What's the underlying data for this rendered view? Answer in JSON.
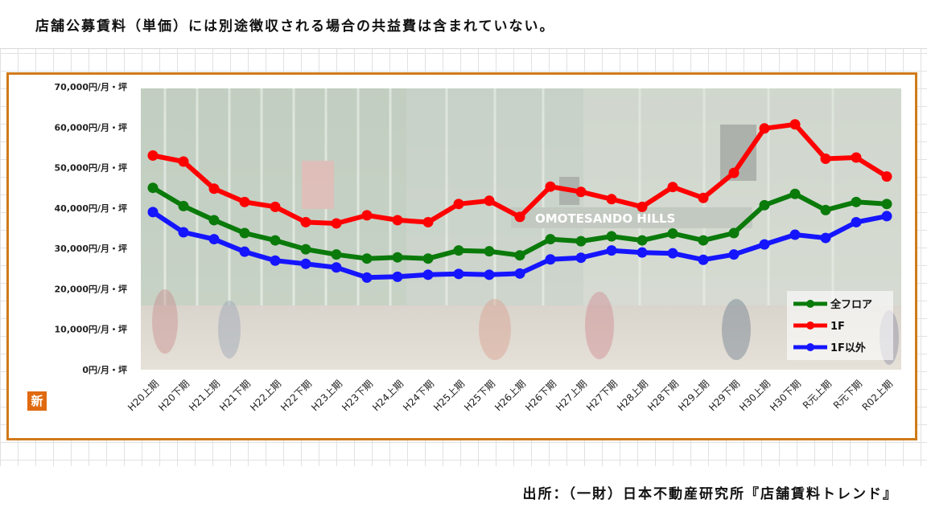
{
  "note": "店舗公募賃料（単価）には別途徴収される場合の共益費は含まれていない。",
  "source": "出所：（一財）日本不動産研究所『店舗賃料トレンド』",
  "badge": "新",
  "photo_sign": "OMOTESANDO HILLS",
  "chart_data": {
    "type": "line",
    "categories": [
      "H20上期",
      "H20下期",
      "H21上期",
      "H21下期",
      "H22上期",
      "H22下期",
      "H23上期",
      "H23下期",
      "H24上期",
      "H24下期",
      "H25上期",
      "H25下期",
      "H26上期",
      "H26下期",
      "H27上期",
      "H27下期",
      "H28上期",
      "H28下期",
      "H29上期",
      "H29下期",
      "H30上期",
      "H30下期",
      "R元上期",
      "R元下期",
      "R02上期"
    ],
    "y_ticks": [
      "70,000円/月・坪",
      "60,000円/月・坪",
      "50,000円/月・坪",
      "40,000円/月・坪",
      "30,000円/月・坪",
      "20,000円/月・坪",
      "10,000円/月・坪",
      "0円/月・坪"
    ],
    "ylim": [
      0,
      70000
    ],
    "legend_position": "bottom-right",
    "series": [
      {
        "name": "全フロア",
        "color": "#0a7a0a",
        "values": [
          45000,
          40500,
          37000,
          33800,
          32000,
          29800,
          28500,
          27500,
          27800,
          27500,
          29500,
          29300,
          28300,
          32300,
          31800,
          33000,
          32000,
          33700,
          32000,
          33800,
          40700,
          43500,
          39500,
          41500,
          41000
        ]
      },
      {
        "name": "1F",
        "color": "#ff0000",
        "values": [
          53000,
          51500,
          44800,
          41500,
          40300,
          36500,
          36200,
          38200,
          37000,
          36500,
          41000,
          41800,
          37800,
          45300,
          44000,
          42200,
          40300,
          45200,
          42500,
          48700,
          59700,
          60700,
          52200,
          52500,
          47800
        ]
      },
      {
        "name": "1F以外",
        "color": "#1515ff",
        "values": [
          39000,
          34000,
          32300,
          29200,
          27000,
          26200,
          25300,
          22800,
          23000,
          23500,
          23700,
          23500,
          23800,
          27300,
          27700,
          29500,
          29000,
          28800,
          27200,
          28500,
          31000,
          33400,
          32600,
          36500,
          38000
        ]
      }
    ]
  }
}
